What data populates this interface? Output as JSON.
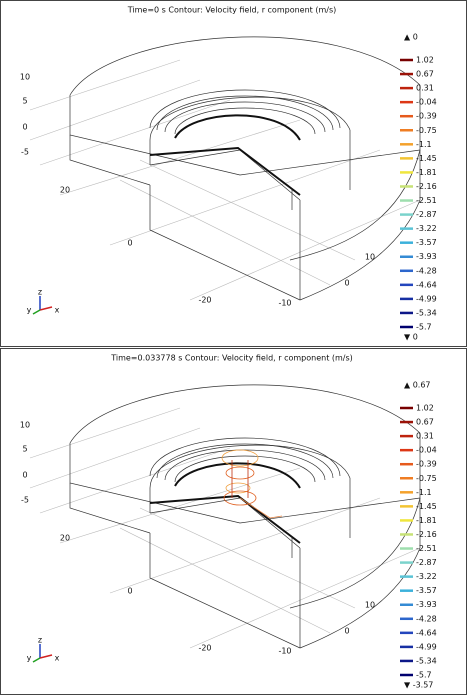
{
  "panels": [
    {
      "title": "Time=0 s   Contour: Velocity field, r component (m/s)",
      "max_label": "▲ 0",
      "min_label": "▼ 0",
      "colorbar_labels": [
        "1.02",
        "0.67",
        "0.31",
        "-0.04",
        "-0.39",
        "-0.75",
        "-1.1",
        "-1.45",
        "-1.81",
        "-2.16",
        "-2.51",
        "-2.87",
        "-3.22",
        "-3.57",
        "-3.93",
        "-4.28",
        "-4.64",
        "-4.99",
        "-5.34",
        "-5.7"
      ],
      "axis_labels": [
        "10",
        "5",
        "0",
        "-5",
        "20",
        "0",
        "-20",
        "-10",
        "0",
        "10"
      ],
      "triad_labels": [
        "y",
        "z",
        "x"
      ]
    },
    {
      "title": "Time=0.033778 s   Contour: Velocity field, r component (m/s)",
      "max_label": "▲ 0.67",
      "min_label": "▼ -3.57",
      "colorbar_labels": [
        "1.02",
        "0.67",
        "0.31",
        "-0.04",
        "-0.39",
        "-0.75",
        "-1.1",
        "-1.45",
        "-1.81",
        "-2.16",
        "-2.51",
        "-2.87",
        "-3.22",
        "-3.57",
        "-3.93",
        "-4.28",
        "-4.64",
        "-4.99",
        "-5.34",
        "-5.7"
      ],
      "axis_labels": [
        "10",
        "5",
        "0",
        "-5",
        "20",
        "0",
        "-20",
        "-10",
        "0",
        "10"
      ],
      "triad_labels": [
        "y",
        "z",
        "x"
      ]
    }
  ]
}
